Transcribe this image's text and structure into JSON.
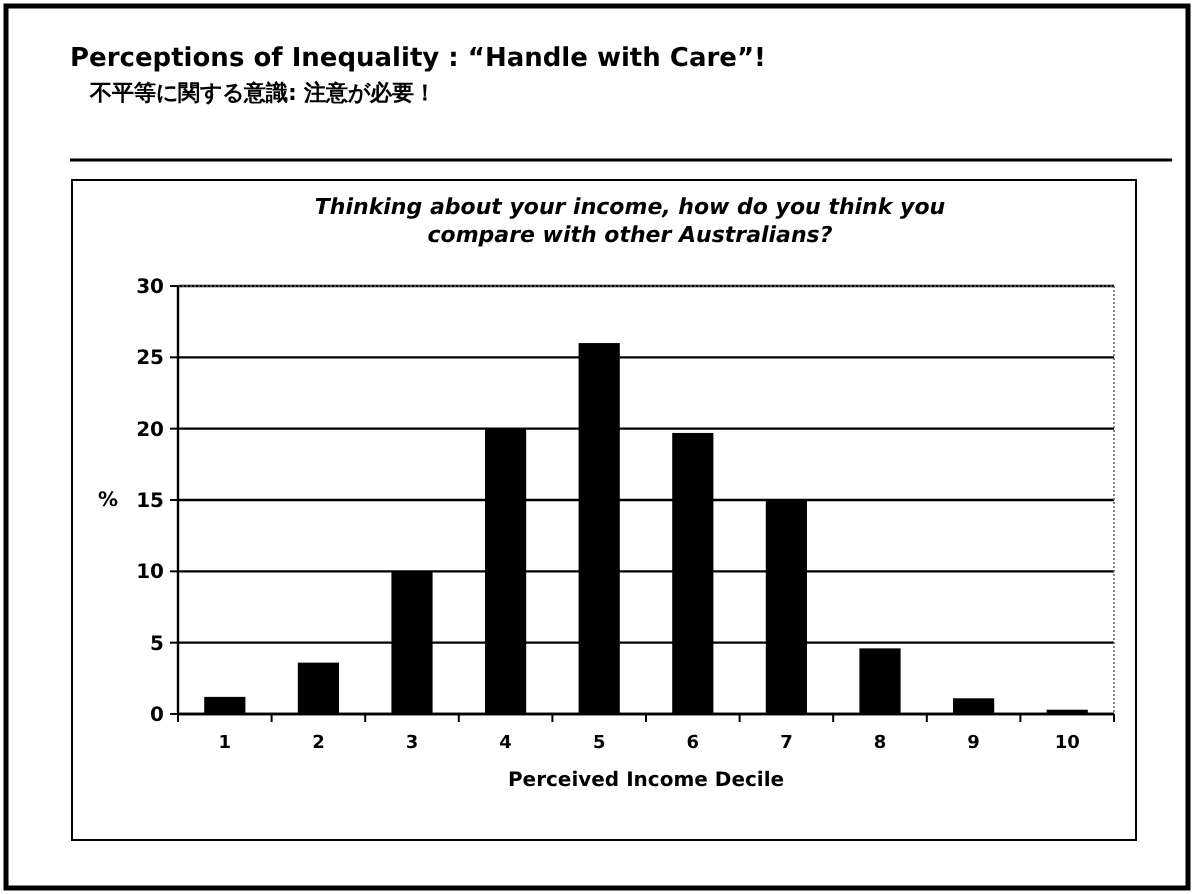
{
  "chart_data": {
    "type": "bar",
    "title": "Perceptions of Inequality : “Handle with Care”!",
    "subtitle": "不平等に関する意識:  注意が必要！",
    "annotations": [
      "Thinking about your income, how do you think you compare with other Australians?"
    ],
    "xlabel": "Perceived Income Decile",
    "ylabel": "%",
    "categories": [
      "1",
      "2",
      "3",
      "4",
      "5",
      "6",
      "7",
      "8",
      "9",
      "10"
    ],
    "values": [
      1.2,
      3.6,
      10,
      20,
      26,
      19.7,
      15,
      4.6,
      1.1,
      0.3
    ],
    "color": "#000000",
    "ylim": [
      0,
      30
    ],
    "yticks": [
      0,
      5,
      10,
      15,
      20,
      25,
      30
    ],
    "grid": "y"
  }
}
